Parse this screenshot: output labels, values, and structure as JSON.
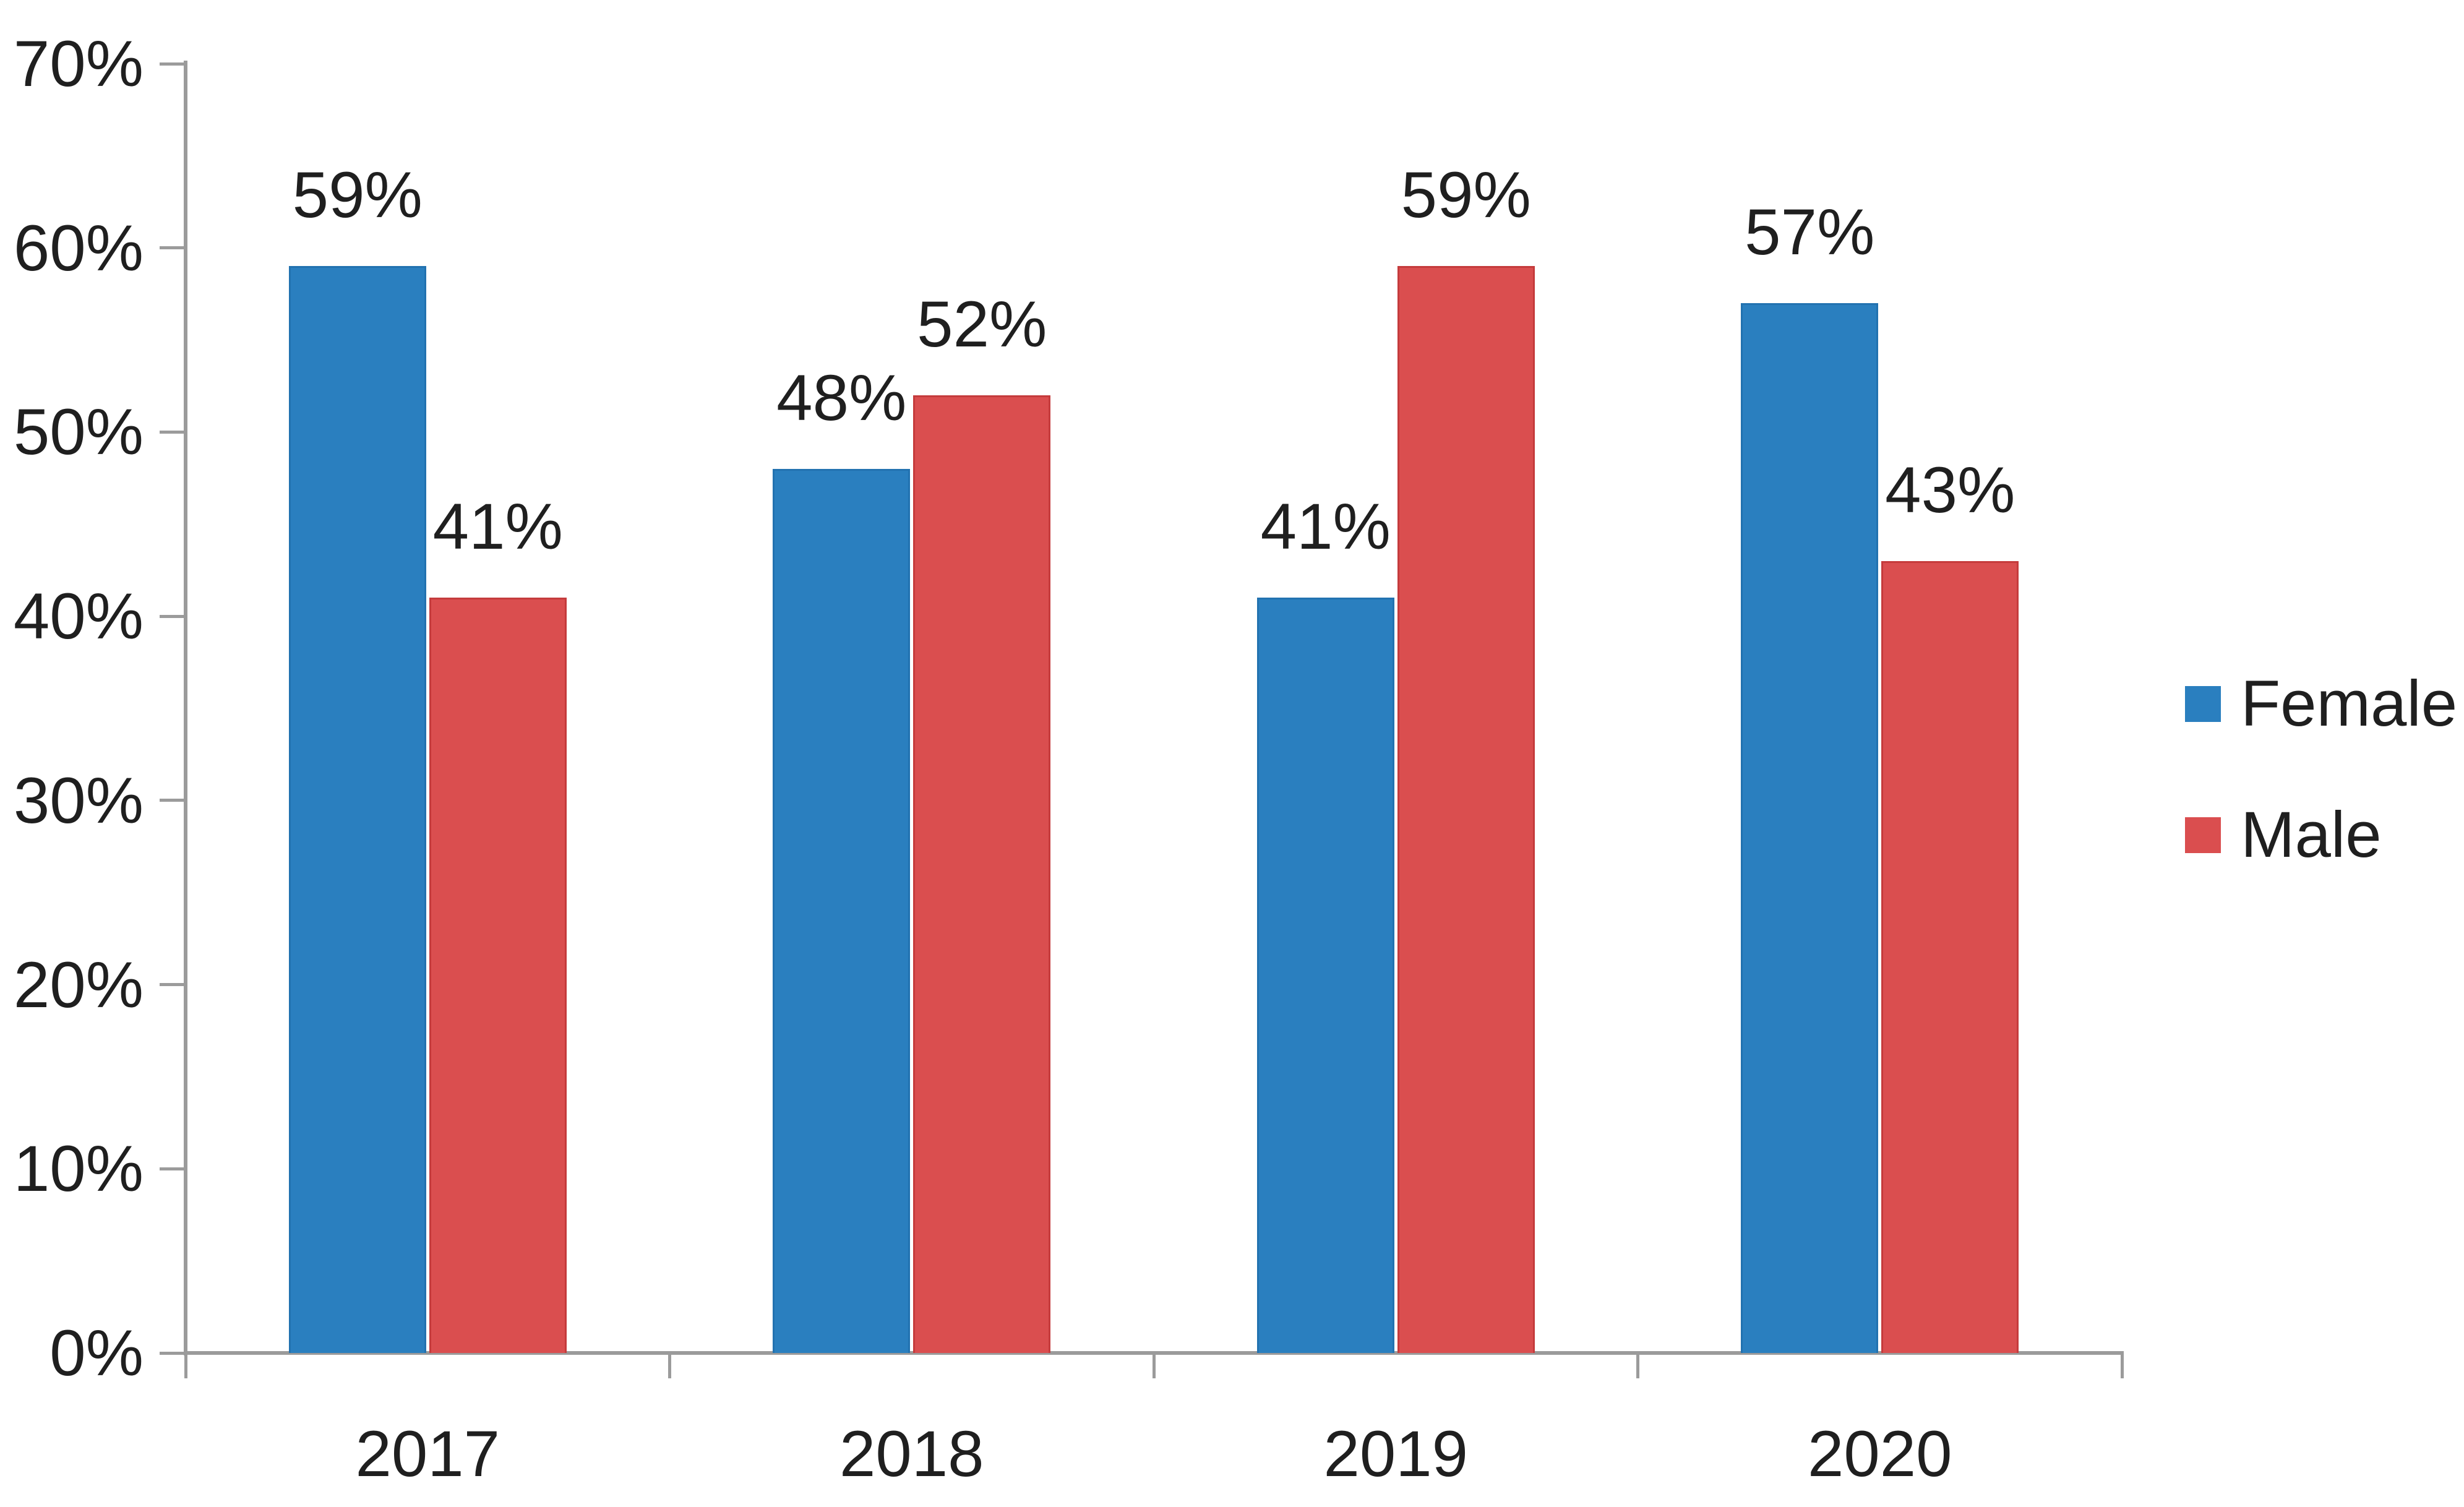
{
  "chart_data": {
    "type": "bar",
    "categories": [
      "2017",
      "2018",
      "2019",
      "2020"
    ],
    "series": [
      {
        "name": "Female",
        "color": "#2A7FBF",
        "border_color": "#2272B0",
        "values": [
          59,
          48,
          41,
          57
        ],
        "labels": [
          "59%",
          "48%",
          "41%",
          "57%"
        ]
      },
      {
        "name": "Male",
        "color": "#DA4E4F",
        "border_color": "#C53B3C",
        "values": [
          41,
          52,
          59,
          43
        ],
        "labels": [
          "41%",
          "52%",
          "59%",
          "43%"
        ]
      }
    ],
    "ylim": [
      0,
      70
    ],
    "yticks": [
      {
        "value": 0,
        "label": "0%"
      },
      {
        "value": 10,
        "label": "10%"
      },
      {
        "value": 20,
        "label": "20%"
      },
      {
        "value": 30,
        "label": "30%"
      },
      {
        "value": 40,
        "label": "40%"
      },
      {
        "value": 50,
        "label": "50%"
      },
      {
        "value": 60,
        "label": "60%"
      },
      {
        "value": 70,
        "label": "70%"
      },
      {
        "value": 70,
        "label": "70%"
      }
    ],
    "grid": false,
    "legend_position": "right",
    "data_labels_shown": true
  },
  "colors": {
    "axis": "#9B9B9B",
    "text": "#1F1F1F",
    "background": "#FFFFFF"
  }
}
